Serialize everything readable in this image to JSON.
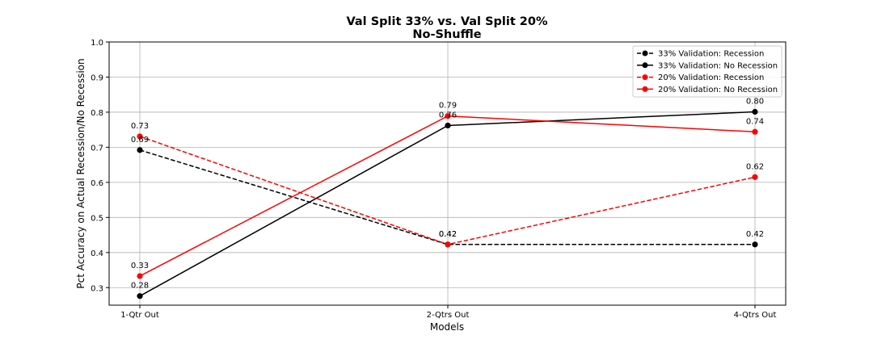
{
  "chart_data": {
    "type": "line",
    "title": "Val Split 33% vs. Val Split 20%",
    "subtitle": "No-Shuffle",
    "xlabel": "Models",
    "ylabel": "Pct Accuracy on Actual Recession/No Recession",
    "categories": [
      "1-Qtr Out",
      "2-Qtrs Out",
      "4-Qtrs Out"
    ],
    "ylim": [
      0.25,
      1.0
    ],
    "yticks": [
      "0.3",
      "0.4",
      "0.5",
      "0.6",
      "0.7",
      "0.8",
      "0.9",
      "1.0"
    ],
    "grid": true,
    "legend_position": "top-right",
    "series": [
      {
        "name": "33% Validation: Recession",
        "color": "#000000",
        "linestyle": "dashed",
        "marker": "circle",
        "values": [
          0.692,
          0.423,
          0.423
        ],
        "labels": [
          "0.69",
          "0.42",
          "0.42"
        ]
      },
      {
        "name": "33% Validation: No Recession",
        "color": "#000000",
        "linestyle": "solid",
        "marker": "circle",
        "values": [
          0.276,
          0.762,
          0.801
        ],
        "labels": [
          "0.28",
          "0.76",
          "0.80"
        ]
      },
      {
        "name": "20% Validation: Recession",
        "color": "#ff0000",
        "linestyle": "dashed",
        "marker": "circle",
        "values": [
          0.731,
          0.423,
          0.615
        ],
        "labels": [
          "0.73",
          "0.42",
          "0.62"
        ]
      },
      {
        "name": "20% Validation: No Recession",
        "color": "#ff0000",
        "linestyle": "solid",
        "marker": "circle",
        "values": [
          0.333,
          0.789,
          0.744
        ],
        "labels": [
          "0.33",
          "0.79",
          "0.74"
        ]
      }
    ]
  }
}
